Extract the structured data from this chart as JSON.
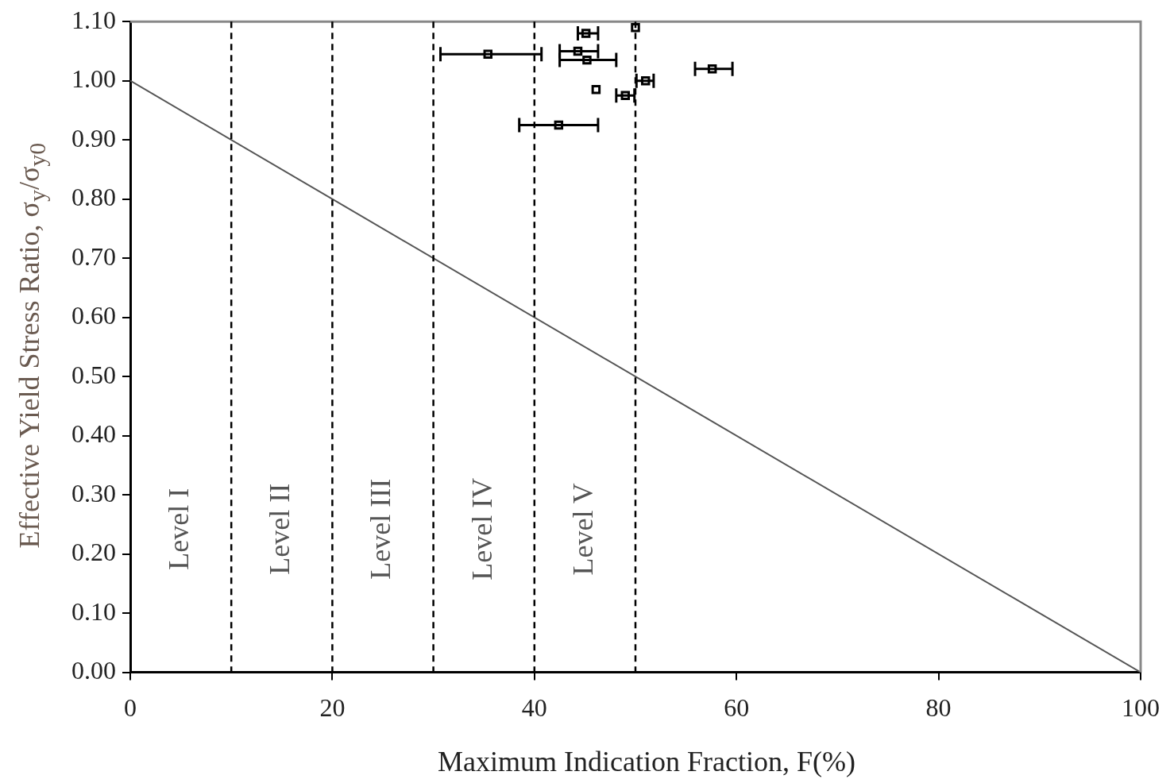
{
  "chart_data": {
    "type": "scatter",
    "xlabel": "Maximum Indication Fraction, F(%)",
    "ylabel": "Effective Yield Stress Ratio, σ$_{y}$/σ$_{y0}$",
    "xlim": [
      0,
      100
    ],
    "xticks": [
      0,
      20,
      40,
      60,
      80,
      100
    ],
    "ylim": [
      0,
      1.1
    ],
    "yticks": [
      {
        "value": 0,
        "label": "0.00"
      },
      {
        "value": 0.1,
        "label": "0.10"
      },
      {
        "value": 0.2,
        "label": "0.20"
      },
      {
        "value": 0.3,
        "label": "0.30"
      },
      {
        "value": 0.4,
        "label": "0.40"
      },
      {
        "value": 0.5,
        "label": "0.50"
      },
      {
        "value": 0.6,
        "label": "0.60"
      },
      {
        "value": 0.7,
        "label": "0.70"
      },
      {
        "value": 0.8,
        "label": "0.80"
      },
      {
        "value": 0.9,
        "label": "0.90"
      },
      {
        "value": 1.0,
        "label": "1.00"
      },
      {
        "value": 1.1,
        "label": "1.10"
      }
    ],
    "grid": false,
    "legend": false,
    "marker": "square",
    "series": [
      {
        "color": "#000000",
        "x": [
          50.0,
          45.1,
          44.3,
          35.4,
          45.2,
          57.6,
          51.0,
          46.1,
          49.0,
          42.4
        ],
        "values": [
          1.09,
          1.08,
          1.05,
          1.045,
          1.035,
          1.02,
          1.0,
          0.985,
          0.975,
          0.925
        ],
        "xerrors": [
          null,
          [
            44.3,
            46.3
          ],
          [
            42.5,
            46.3
          ],
          [
            30.7,
            40.7
          ],
          [
            42.5,
            48.1
          ],
          [
            55.9,
            59.6
          ],
          [
            50.1,
            51.8
          ],
          null,
          [
            48.1,
            49.9
          ],
          [
            38.5,
            46.3
          ]
        ]
      },
      {
        "type": "line",
        "color": "#555555",
        "x": [
          0,
          100
        ],
        "values": [
          1.0,
          0
        ],
        "marker": "none",
        "line_style": "solid"
      }
    ],
    "ref_lines": [
      {
        "axis": "x",
        "value": 10,
        "color": "#000000",
        "line_style": "dashed"
      },
      {
        "axis": "x",
        "value": 20,
        "color": "#000000",
        "line_style": "dashed"
      },
      {
        "axis": "x",
        "value": 30,
        "color": "#000000",
        "line_style": "dashed"
      },
      {
        "axis": "x",
        "value": 40,
        "color": "#000000",
        "line_style": "dashed"
      },
      {
        "axis": "x",
        "value": 50,
        "color": "#000000",
        "line_style": "dashed"
      }
    ],
    "annotations": [
      "Level I",
      "Level II",
      "Level III",
      "Level IV",
      "Level V"
    ]
  }
}
